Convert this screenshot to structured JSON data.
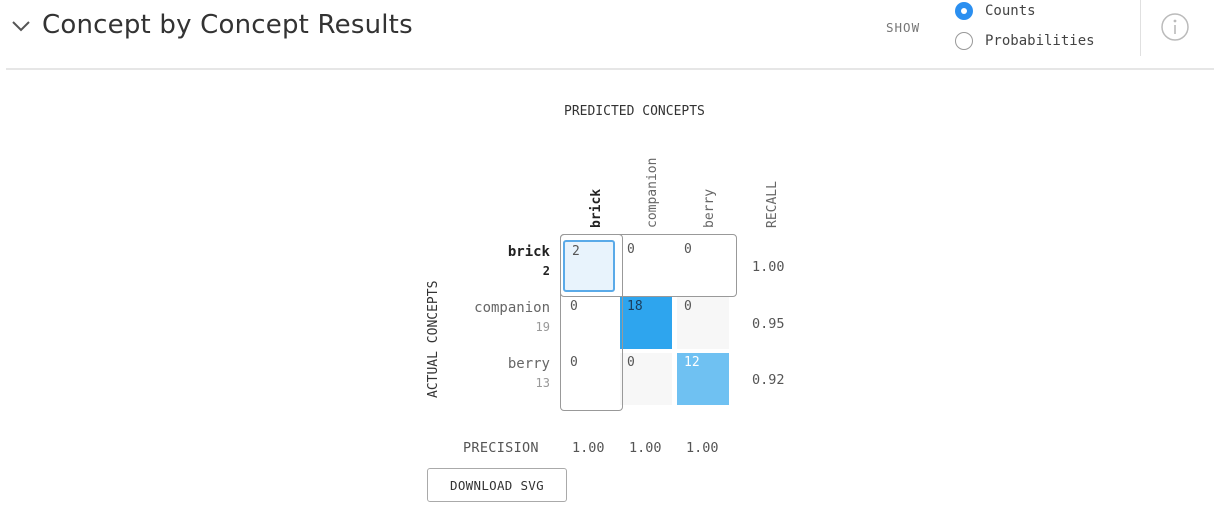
{
  "header": {
    "title": "Concept by Concept Results",
    "show_label": "SHOW",
    "options": [
      {
        "label": "Counts",
        "checked": true
      },
      {
        "label": "Probabilities",
        "checked": false
      }
    ]
  },
  "matrix": {
    "predicted_axis": "PREDICTED CONCEPTS",
    "actual_axis": "ACTUAL CONCEPTS",
    "recall_header": "RECALL",
    "precision_label": "PRECISION",
    "columns": [
      "brick",
      "companion",
      "berry"
    ],
    "rows": [
      {
        "name": "brick",
        "count": "2",
        "cells": [
          "2",
          "0",
          "0"
        ],
        "recall": "1.00"
      },
      {
        "name": "companion",
        "count": "19",
        "cells": [
          "0",
          "18",
          "0"
        ],
        "recall": "0.95"
      },
      {
        "name": "berry",
        "count": "13",
        "cells": [
          "0",
          "0",
          "12"
        ],
        "recall": "0.92"
      }
    ],
    "precision": [
      "1.00",
      "1.00",
      "1.00"
    ],
    "colors": {
      "selected_fill": "#e8f3fc",
      "selected_border": "#5aaae8",
      "dark_fill": "#2ea5ee",
      "light_fill": "#6fc1f2",
      "empty_fill": "#f7f7f7"
    }
  },
  "download_label": "DOWNLOAD SVG"
}
